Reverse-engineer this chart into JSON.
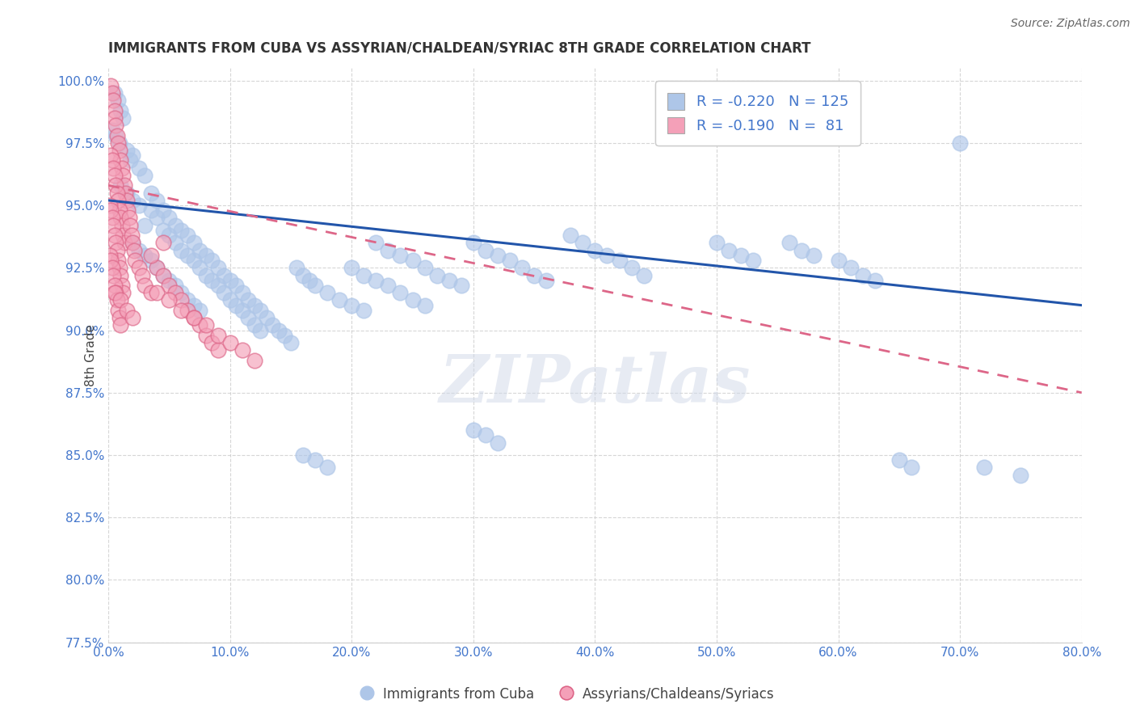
{
  "title": "IMMIGRANTS FROM CUBA VS ASSYRIAN/CHALDEAN/SYRIAC 8TH GRADE CORRELATION CHART",
  "source": "Source: ZipAtlas.com",
  "ylabel": "8th Grade",
  "yticks": [
    77.5,
    80.0,
    82.5,
    85.0,
    87.5,
    90.0,
    92.5,
    95.0,
    97.5,
    100.0
  ],
  "xticks": [
    0.0,
    10.0,
    20.0,
    30.0,
    40.0,
    50.0,
    60.0,
    70.0,
    80.0
  ],
  "xmin": 0.0,
  "xmax": 80.0,
  "ymin": 77.5,
  "ymax": 100.5,
  "blue_R": -0.22,
  "blue_N": 125,
  "pink_R": -0.19,
  "pink_N": 81,
  "legend_label_blue": "Immigrants from Cuba",
  "legend_label_pink": "Assyrians/Chaldeans/Syriacs",
  "blue_color": "#aec6e8",
  "blue_line_color": "#2255aa",
  "pink_color": "#f4a0b8",
  "pink_line_color": "#dd6688",
  "watermark_text": "ZIPatlas",
  "title_color": "#333333",
  "axis_color": "#4477cc",
  "label_color": "#555555",
  "blue_scatter": [
    [
      0.5,
      99.5
    ],
    [
      0.8,
      99.2
    ],
    [
      1.0,
      98.8
    ],
    [
      1.2,
      98.5
    ],
    [
      0.3,
      98.0
    ],
    [
      0.6,
      97.8
    ],
    [
      0.9,
      97.5
    ],
    [
      1.5,
      97.2
    ],
    [
      2.0,
      97.0
    ],
    [
      1.8,
      96.8
    ],
    [
      2.5,
      96.5
    ],
    [
      3.0,
      96.2
    ],
    [
      1.0,
      95.8
    ],
    [
      1.5,
      95.5
    ],
    [
      2.0,
      95.2
    ],
    [
      2.5,
      95.0
    ],
    [
      3.5,
      94.8
    ],
    [
      4.0,
      94.5
    ],
    [
      3.0,
      94.2
    ],
    [
      4.5,
      94.0
    ],
    [
      5.0,
      93.8
    ],
    [
      5.5,
      93.5
    ],
    [
      6.0,
      93.2
    ],
    [
      6.5,
      93.0
    ],
    [
      7.0,
      92.8
    ],
    [
      7.5,
      92.5
    ],
    [
      8.0,
      92.2
    ],
    [
      8.5,
      92.0
    ],
    [
      9.0,
      91.8
    ],
    [
      9.5,
      91.5
    ],
    [
      10.0,
      91.2
    ],
    [
      10.5,
      91.0
    ],
    [
      11.0,
      90.8
    ],
    [
      11.5,
      90.5
    ],
    [
      12.0,
      90.2
    ],
    [
      12.5,
      90.0
    ],
    [
      3.5,
      95.5
    ],
    [
      4.0,
      95.2
    ],
    [
      4.5,
      94.8
    ],
    [
      5.0,
      94.5
    ],
    [
      5.5,
      94.2
    ],
    [
      6.0,
      94.0
    ],
    [
      6.5,
      93.8
    ],
    [
      7.0,
      93.5
    ],
    [
      7.5,
      93.2
    ],
    [
      8.0,
      93.0
    ],
    [
      8.5,
      92.8
    ],
    [
      9.0,
      92.5
    ],
    [
      9.5,
      92.2
    ],
    [
      10.0,
      92.0
    ],
    [
      10.5,
      91.8
    ],
    [
      11.0,
      91.5
    ],
    [
      11.5,
      91.2
    ],
    [
      12.0,
      91.0
    ],
    [
      12.5,
      90.8
    ],
    [
      13.0,
      90.5
    ],
    [
      13.5,
      90.2
    ],
    [
      14.0,
      90.0
    ],
    [
      14.5,
      89.8
    ],
    [
      15.0,
      89.5
    ],
    [
      2.0,
      93.5
    ],
    [
      2.5,
      93.2
    ],
    [
      3.0,
      93.0
    ],
    [
      3.5,
      92.8
    ],
    [
      4.0,
      92.5
    ],
    [
      4.5,
      92.2
    ],
    [
      5.0,
      92.0
    ],
    [
      5.5,
      91.8
    ],
    [
      6.0,
      91.5
    ],
    [
      6.5,
      91.2
    ],
    [
      7.0,
      91.0
    ],
    [
      7.5,
      90.8
    ],
    [
      15.5,
      92.5
    ],
    [
      16.0,
      92.2
    ],
    [
      16.5,
      92.0
    ],
    [
      17.0,
      91.8
    ],
    [
      18.0,
      91.5
    ],
    [
      19.0,
      91.2
    ],
    [
      20.0,
      91.0
    ],
    [
      21.0,
      90.8
    ],
    [
      22.0,
      93.5
    ],
    [
      23.0,
      93.2
    ],
    [
      24.0,
      93.0
    ],
    [
      25.0,
      92.8
    ],
    [
      26.0,
      92.5
    ],
    [
      27.0,
      92.2
    ],
    [
      28.0,
      92.0
    ],
    [
      29.0,
      91.8
    ],
    [
      30.0,
      93.5
    ],
    [
      31.0,
      93.2
    ],
    [
      32.0,
      93.0
    ],
    [
      33.0,
      92.8
    ],
    [
      34.0,
      92.5
    ],
    [
      35.0,
      92.2
    ],
    [
      36.0,
      92.0
    ],
    [
      38.0,
      93.8
    ],
    [
      39.0,
      93.5
    ],
    [
      40.0,
      93.2
    ],
    [
      41.0,
      93.0
    ],
    [
      42.0,
      92.8
    ],
    [
      43.0,
      92.5
    ],
    [
      44.0,
      92.2
    ],
    [
      20.0,
      92.5
    ],
    [
      21.0,
      92.2
    ],
    [
      22.0,
      92.0
    ],
    [
      23.0,
      91.8
    ],
    [
      24.0,
      91.5
    ],
    [
      25.0,
      91.2
    ],
    [
      26.0,
      91.0
    ],
    [
      16.0,
      85.0
    ],
    [
      17.0,
      84.8
    ],
    [
      18.0,
      84.5
    ],
    [
      30.0,
      86.0
    ],
    [
      31.0,
      85.8
    ],
    [
      32.0,
      85.5
    ],
    [
      50.0,
      93.5
    ],
    [
      51.0,
      93.2
    ],
    [
      52.0,
      93.0
    ],
    [
      53.0,
      92.8
    ],
    [
      56.0,
      93.5
    ],
    [
      57.0,
      93.2
    ],
    [
      58.0,
      93.0
    ],
    [
      60.0,
      92.8
    ],
    [
      61.0,
      92.5
    ],
    [
      62.0,
      92.2
    ],
    [
      63.0,
      92.0
    ],
    [
      65.0,
      84.8
    ],
    [
      66.0,
      84.5
    ],
    [
      70.0,
      97.5
    ],
    [
      72.0,
      84.5
    ],
    [
      75.0,
      84.2
    ]
  ],
  "pink_scatter": [
    [
      0.2,
      99.8
    ],
    [
      0.3,
      99.5
    ],
    [
      0.4,
      99.2
    ],
    [
      0.5,
      98.8
    ],
    [
      0.5,
      98.5
    ],
    [
      0.6,
      98.2
    ],
    [
      0.7,
      97.8
    ],
    [
      0.8,
      97.5
    ],
    [
      0.9,
      97.2
    ],
    [
      1.0,
      96.8
    ],
    [
      1.1,
      96.5
    ],
    [
      1.2,
      96.2
    ],
    [
      1.3,
      95.8
    ],
    [
      1.4,
      95.5
    ],
    [
      1.5,
      95.2
    ],
    [
      1.6,
      94.8
    ],
    [
      0.2,
      97.0
    ],
    [
      0.3,
      96.8
    ],
    [
      0.4,
      96.5
    ],
    [
      0.5,
      96.2
    ],
    [
      0.6,
      95.8
    ],
    [
      0.7,
      95.5
    ],
    [
      0.8,
      95.2
    ],
    [
      0.9,
      94.8
    ],
    [
      1.0,
      94.5
    ],
    [
      1.1,
      94.2
    ],
    [
      1.2,
      93.8
    ],
    [
      1.3,
      93.5
    ],
    [
      0.1,
      95.0
    ],
    [
      0.2,
      94.8
    ],
    [
      0.3,
      94.5
    ],
    [
      0.4,
      94.2
    ],
    [
      0.5,
      93.8
    ],
    [
      0.6,
      93.5
    ],
    [
      0.7,
      93.2
    ],
    [
      0.8,
      92.8
    ],
    [
      0.9,
      92.5
    ],
    [
      1.0,
      92.2
    ],
    [
      1.1,
      91.8
    ],
    [
      1.2,
      91.5
    ],
    [
      0.1,
      93.0
    ],
    [
      0.2,
      92.8
    ],
    [
      0.3,
      92.5
    ],
    [
      0.4,
      92.2
    ],
    [
      0.5,
      91.8
    ],
    [
      0.6,
      91.5
    ],
    [
      0.7,
      91.2
    ],
    [
      0.8,
      90.8
    ],
    [
      0.9,
      90.5
    ],
    [
      1.0,
      90.2
    ],
    [
      1.7,
      94.5
    ],
    [
      1.8,
      94.2
    ],
    [
      1.9,
      93.8
    ],
    [
      2.0,
      93.5
    ],
    [
      2.1,
      93.2
    ],
    [
      2.2,
      92.8
    ],
    [
      2.5,
      92.5
    ],
    [
      2.8,
      92.2
    ],
    [
      3.0,
      91.8
    ],
    [
      3.5,
      91.5
    ],
    [
      4.0,
      92.5
    ],
    [
      4.5,
      92.2
    ],
    [
      5.0,
      91.8
    ],
    [
      5.5,
      91.5
    ],
    [
      6.0,
      91.2
    ],
    [
      6.5,
      90.8
    ],
    [
      7.0,
      90.5
    ],
    [
      7.5,
      90.2
    ],
    [
      8.0,
      89.8
    ],
    [
      8.5,
      89.5
    ],
    [
      9.0,
      89.2
    ],
    [
      4.0,
      91.5
    ],
    [
      5.0,
      91.2
    ],
    [
      6.0,
      90.8
    ],
    [
      7.0,
      90.5
    ],
    [
      8.0,
      90.2
    ],
    [
      9.0,
      89.8
    ],
    [
      10.0,
      89.5
    ],
    [
      11.0,
      89.2
    ],
    [
      12.0,
      88.8
    ],
    [
      0.5,
      91.5
    ],
    [
      1.0,
      91.2
    ],
    [
      1.5,
      90.8
    ],
    [
      2.0,
      90.5
    ],
    [
      3.5,
      93.0
    ],
    [
      4.5,
      93.5
    ]
  ],
  "blue_line_x0": 0.0,
  "blue_line_x1": 80.0,
  "blue_line_y0": 95.2,
  "blue_line_y1": 91.0,
  "pink_line_x0": 0.0,
  "pink_line_x1": 80.0,
  "pink_line_y0": 95.8,
  "pink_line_y1": 87.5
}
